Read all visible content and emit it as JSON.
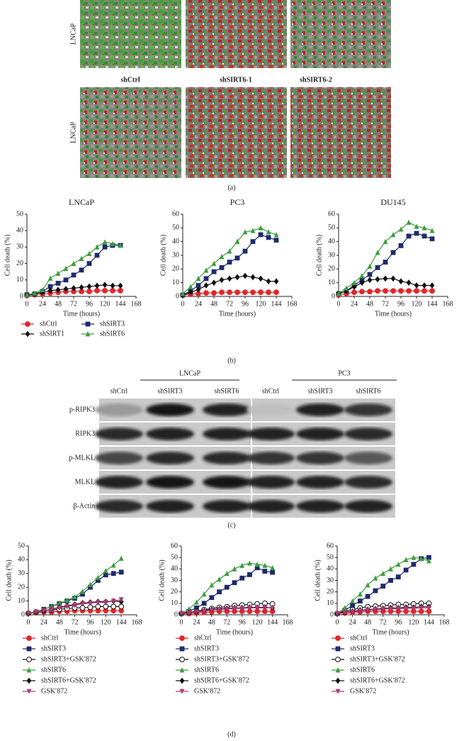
{
  "panel_labels": [
    "(a)",
    "(b)",
    "(c)",
    "(d)"
  ],
  "panel_a": {
    "row_label": "LNCaP",
    "columns": [
      "shCtrl",
      "shSIRT6-1",
      "shSIRT6-2"
    ]
  },
  "panel_c": {
    "groups": [
      "LNCaP",
      "PC3"
    ],
    "lanes": [
      "shCtrl",
      "shSIRT3",
      "shSIRT6",
      "shCtrl",
      "shSIRT3",
      "shSIRT6"
    ],
    "rows": [
      "p-RIPK3",
      "RIPK3",
      "p-MLKL",
      "MLKL",
      "β-Actin"
    ]
  },
  "chart_data": [
    {
      "type": "line",
      "title": "LNCaP",
      "x_label": "Time (hours)",
      "y_label": "Cell death (%)",
      "legend": "below",
      "x": [
        0,
        12,
        24,
        36,
        48,
        60,
        72,
        84,
        96,
        108,
        120,
        132,
        144
      ],
      "xlim": [
        0,
        168
      ],
      "xticks": [
        0,
        24,
        48,
        72,
        96,
        120,
        144,
        168
      ],
      "ylim": [
        0,
        50
      ],
      "yticks": [
        0,
        10,
        20,
        30,
        40,
        50
      ],
      "series": [
        {
          "name": "shCtrl",
          "color": "#e2262b",
          "marker": "circle",
          "values": [
            0.5,
            1,
            1.5,
            2,
            2.5,
            3,
            3,
            3,
            3,
            3.5,
            3.5,
            3.5,
            3.5
          ]
        },
        {
          "name": "shSIRT3",
          "color": "#1f2a6b",
          "marker": "square",
          "values": [
            1,
            1.5,
            3,
            6,
            8,
            10,
            13,
            16,
            20,
            25,
            30,
            31,
            31
          ]
        },
        {
          "name": "shSIRT1",
          "color": "#111111",
          "marker": "diamond",
          "values": [
            1,
            1.5,
            2.5,
            3.5,
            4,
            4.5,
            5,
            5.5,
            6,
            6.5,
            7,
            6.5,
            6.5
          ]
        },
        {
          "name": "shSIRT6",
          "color": "#3b9e3b",
          "marker": "triangle",
          "values": [
            1,
            2,
            4,
            11,
            14,
            17,
            20,
            23,
            26,
            30,
            33,
            32,
            31
          ]
        }
      ]
    },
    {
      "type": "line",
      "title": "PC3",
      "x_label": "Time (hours)",
      "y_label": "Cell death (%)",
      "legend": false,
      "x": [
        0,
        12,
        24,
        36,
        48,
        60,
        72,
        84,
        96,
        108,
        120,
        132,
        144
      ],
      "xlim": [
        0,
        168
      ],
      "xticks": [
        0,
        24,
        48,
        72,
        96,
        120,
        144,
        168
      ],
      "ylim": [
        0,
        60
      ],
      "yticks": [
        0,
        10,
        20,
        30,
        40,
        50,
        60
      ],
      "series": [
        {
          "name": "shCtrl",
          "color": "#e2262b",
          "marker": "circle",
          "values": [
            1,
            1.5,
            2,
            2.5,
            2.5,
            3,
            3,
            3,
            3,
            3,
            3,
            3,
            3
          ]
        },
        {
          "name": "shSIRT3",
          "color": "#1f2a6b",
          "marker": "square",
          "values": [
            1,
            4,
            8,
            13,
            18,
            21,
            25,
            28,
            33,
            40,
            45,
            43,
            41
          ]
        },
        {
          "name": "shSIRT1",
          "color": "#111111",
          "marker": "diamond",
          "values": [
            1,
            3,
            5,
            8,
            10,
            12,
            13,
            14,
            15,
            14,
            13,
            11,
            11
          ]
        },
        {
          "name": "shSIRT6",
          "color": "#3b9e3b",
          "marker": "triangle",
          "values": [
            2,
            7,
            13,
            19,
            24,
            29,
            33,
            40,
            47,
            48,
            50,
            47,
            45
          ]
        }
      ]
    },
    {
      "type": "line",
      "title": "DU145",
      "x_label": "Time (hours)",
      "y_label": "Cell death (%)",
      "legend": false,
      "x": [
        0,
        12,
        24,
        36,
        48,
        60,
        72,
        84,
        96,
        108,
        120,
        132,
        144
      ],
      "xlim": [
        0,
        168
      ],
      "xticks": [
        0,
        24,
        48,
        72,
        96,
        120,
        144,
        168
      ],
      "ylim": [
        0,
        60
      ],
      "yticks": [
        0,
        10,
        20,
        30,
        40,
        50,
        60
      ],
      "series": [
        {
          "name": "shCtrl",
          "color": "#e2262b",
          "marker": "circle",
          "values": [
            1,
            2,
            3,
            3.5,
            3.5,
            4,
            4,
            4,
            4,
            4,
            4,
            4,
            4
          ]
        },
        {
          "name": "shSIRT3",
          "color": "#1f2a6b",
          "marker": "square",
          "values": [
            2,
            4,
            8,
            12,
            16,
            21,
            25,
            32,
            37,
            44,
            46,
            44,
            42
          ]
        },
        {
          "name": "shSIRT1",
          "color": "#111111",
          "marker": "diamond",
          "values": [
            2,
            4,
            7,
            10,
            12,
            12.5,
            13,
            13,
            11,
            10,
            8,
            8,
            8
          ]
        },
        {
          "name": "shSIRT6",
          "color": "#3b9e3b",
          "marker": "triangle",
          "values": [
            2,
            6,
            10,
            15,
            22,
            32,
            40,
            45,
            49,
            54,
            51,
            50,
            48
          ]
        }
      ]
    },
    {
      "type": "line",
      "x_label": "Time (hours)",
      "y_label": "Cell death (%)",
      "legend": "below",
      "x": [
        0,
        12,
        24,
        36,
        48,
        60,
        72,
        84,
        96,
        108,
        120,
        132,
        144
      ],
      "xlim": [
        0,
        168
      ],
      "xticks": [
        0,
        24,
        48,
        72,
        96,
        120,
        144,
        168
      ],
      "ylim": [
        0,
        50
      ],
      "yticks": [
        0,
        10,
        20,
        30,
        40,
        50
      ],
      "series": [
        {
          "name": "shCtrl",
          "color": "#e2262b",
          "marker": "circle",
          "values": [
            1,
            1.5,
            2,
            2,
            2.5,
            2.5,
            3,
            3,
            3,
            3,
            3,
            3,
            3
          ]
        },
        {
          "name": "shSIRT3",
          "color": "#1f2a6b",
          "marker": "square",
          "values": [
            1,
            2,
            4,
            6,
            8,
            10,
            12,
            15,
            20,
            25,
            29,
            30,
            31
          ]
        },
        {
          "name": "shSIRT3+GSK′872",
          "color": "#111111",
          "marker": "open-circle",
          "values": [
            1,
            2,
            3,
            3.5,
            4,
            4.5,
            5,
            5,
            5.5,
            6,
            6,
            6,
            6
          ]
        },
        {
          "name": "shSIRT6",
          "color": "#3b9e3b",
          "marker": "triangle",
          "values": [
            1,
            2.5,
            4,
            6,
            8.5,
            10.5,
            13,
            17,
            22,
            27,
            32,
            36,
            41
          ]
        },
        {
          "name": "shSIRT6+GSK′872",
          "color": "#111111",
          "marker": "diamond",
          "values": [
            1,
            2,
            3,
            4,
            5.5,
            6.5,
            7.5,
            8.5,
            9,
            9.5,
            9.5,
            10,
            9.5
          ]
        },
        {
          "name": "GSK′872",
          "color": "#b23a78",
          "marker": "triangle-down",
          "values": [
            1,
            2,
            3,
            4,
            5,
            6,
            7,
            8,
            8.5,
            9,
            9,
            10,
            11
          ]
        }
      ]
    },
    {
      "type": "line",
      "x_label": "Time (hours)",
      "y_label": "Cell death (%)",
      "legend": "below",
      "x": [
        0,
        12,
        24,
        36,
        48,
        60,
        72,
        84,
        96,
        108,
        120,
        132,
        144
      ],
      "xlim": [
        0,
        168
      ],
      "xticks": [
        0,
        24,
        48,
        72,
        96,
        120,
        144,
        168
      ],
      "ylim": [
        0,
        60
      ],
      "yticks": [
        0,
        10,
        20,
        30,
        40,
        50,
        60
      ],
      "series": [
        {
          "name": "shCtrl",
          "color": "#e2262b",
          "marker": "circle",
          "values": [
            1,
            1,
            1.5,
            2,
            2.5,
            3,
            3,
            3,
            3,
            3,
            3,
            3,
            3
          ]
        },
        {
          "name": "shSIRT3",
          "color": "#1f2a6b",
          "marker": "square",
          "values": [
            1,
            3,
            6,
            10,
            15,
            20,
            24,
            28,
            32,
            35,
            41,
            38,
            37
          ]
        },
        {
          "name": "shSIRT3+GSK′872",
          "color": "#111111",
          "marker": "open-circle",
          "values": [
            1,
            2,
            3,
            4.5,
            5.5,
            6.5,
            7,
            8,
            8.5,
            9,
            9.5,
            10,
            9.5
          ]
        },
        {
          "name": "shSIRT6",
          "color": "#3b9e3b",
          "marker": "triangle",
          "values": [
            1,
            5,
            11,
            18,
            26,
            31,
            36,
            40,
            43,
            45,
            44,
            43,
            41
          ]
        },
        {
          "name": "shSIRT6+GSK′872",
          "color": "#111111",
          "marker": "diamond",
          "values": [
            1,
            2,
            2.5,
            3.5,
            4.5,
            5,
            5.5,
            6,
            6,
            6.5,
            6.5,
            6.5,
            6
          ]
        },
        {
          "name": "GSK′872",
          "color": "#b23a78",
          "marker": "triangle-down",
          "values": [
            1,
            1.5,
            2.5,
            3,
            4,
            4.5,
            5,
            5.5,
            5.5,
            6,
            6,
            6,
            6
          ]
        }
      ]
    },
    {
      "type": "line",
      "x_label": "Time (hours)",
      "y_label": "Cell death (%)",
      "legend": "below",
      "x": [
        0,
        12,
        24,
        36,
        48,
        60,
        72,
        84,
        96,
        108,
        120,
        132,
        144
      ],
      "xlim": [
        0,
        168
      ],
      "xticks": [
        0,
        24,
        48,
        72,
        96,
        120,
        144,
        168
      ],
      "ylim": [
        0,
        60
      ],
      "yticks": [
        0,
        10,
        20,
        30,
        40,
        50,
        60
      ],
      "series": [
        {
          "name": "shCtrl",
          "color": "#e2262b",
          "marker": "circle",
          "values": [
            1,
            1.5,
            2,
            2.5,
            3,
            3,
            3,
            3,
            3,
            3,
            3,
            3,
            3
          ]
        },
        {
          "name": "shSIRT3",
          "color": "#1f2a6b",
          "marker": "square",
          "values": [
            1,
            4,
            8,
            12,
            16,
            21,
            25,
            30,
            33,
            39,
            44,
            49,
            50
          ]
        },
        {
          "name": "shSIRT3+GSK′872",
          "color": "#111111",
          "marker": "open-circle",
          "values": [
            1,
            3,
            4.5,
            6,
            7,
            7.5,
            8,
            8.5,
            9,
            9,
            9.5,
            10,
            10
          ]
        },
        {
          "name": "shSIRT6",
          "color": "#3b9e3b",
          "marker": "triangle",
          "values": [
            1,
            6,
            12,
            18,
            26,
            32,
            36,
            40,
            44,
            48,
            50,
            49,
            47
          ]
        },
        {
          "name": "shSIRT6+GSK′872",
          "color": "#111111",
          "marker": "diamond",
          "values": [
            1,
            2,
            3,
            4,
            4.5,
            5,
            5.5,
            6,
            6,
            6.5,
            6.5,
            7,
            7
          ]
        },
        {
          "name": "GSK′872",
          "color": "#b23a78",
          "marker": "triangle-down",
          "values": [
            1,
            2,
            2.5,
            3.5,
            4,
            4.5,
            5,
            5,
            5.5,
            5.5,
            5.5,
            6,
            6
          ]
        }
      ]
    }
  ]
}
